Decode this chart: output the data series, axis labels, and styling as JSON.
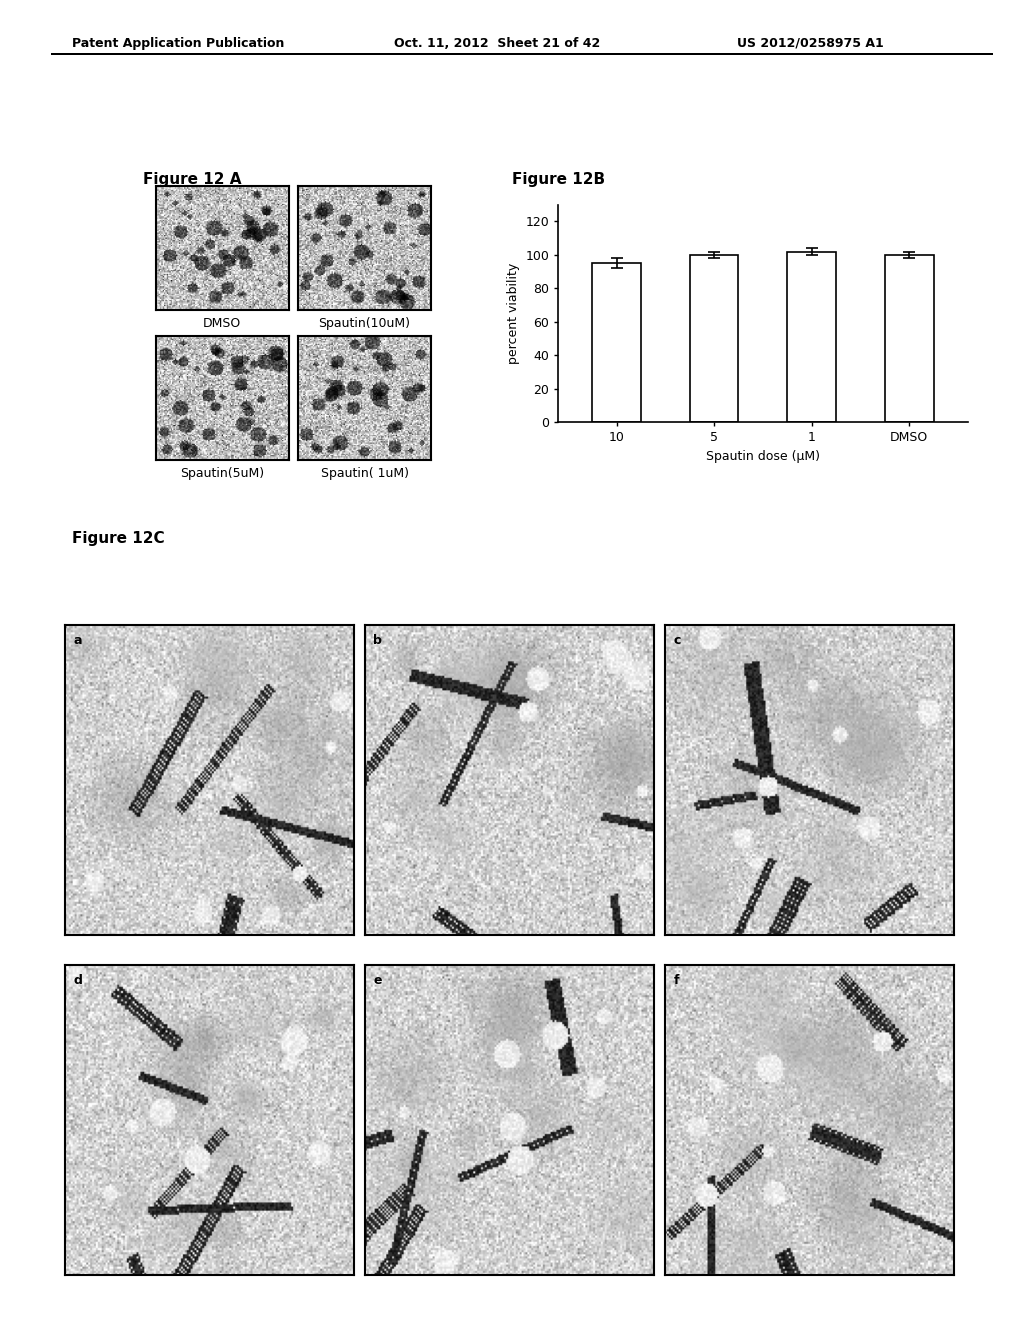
{
  "header_left": "Patent Application Publication",
  "header_mid": "Oct. 11, 2012  Sheet 21 of 42",
  "header_right": "US 2012/0258975 A1",
  "fig12a_label": "Figure 12 A",
  "fig12b_label": "Figure 12B",
  "fig12c_label": "Figure 12C",
  "fig12a_sublabels_row1": [
    "DMSO",
    "Spautin(10uM)"
  ],
  "fig12a_sublabels_row2": [
    "Spautin(5uM)",
    "Spautin( 1uM)"
  ],
  "fig12b_categories": [
    "10",
    "5",
    "1",
    "DMSO"
  ],
  "fig12b_values": [
    95,
    100,
    102,
    100
  ],
  "fig12b_errors": [
    3,
    2,
    2,
    2
  ],
  "fig12b_ylabel": "percent viability",
  "fig12b_xlabel": "Spautin dose (μM)",
  "fig12b_ylim": [
    0,
    130
  ],
  "fig12b_yticks": [
    0,
    20,
    40,
    60,
    80,
    100,
    120
  ],
  "fig12c_sublabels": [
    "a",
    "b",
    "c",
    "d",
    "e",
    "f"
  ],
  "bar_color": "#ffffff",
  "bar_edge_color": "#000000",
  "background_color": "#ffffff",
  "text_color": "#000000"
}
